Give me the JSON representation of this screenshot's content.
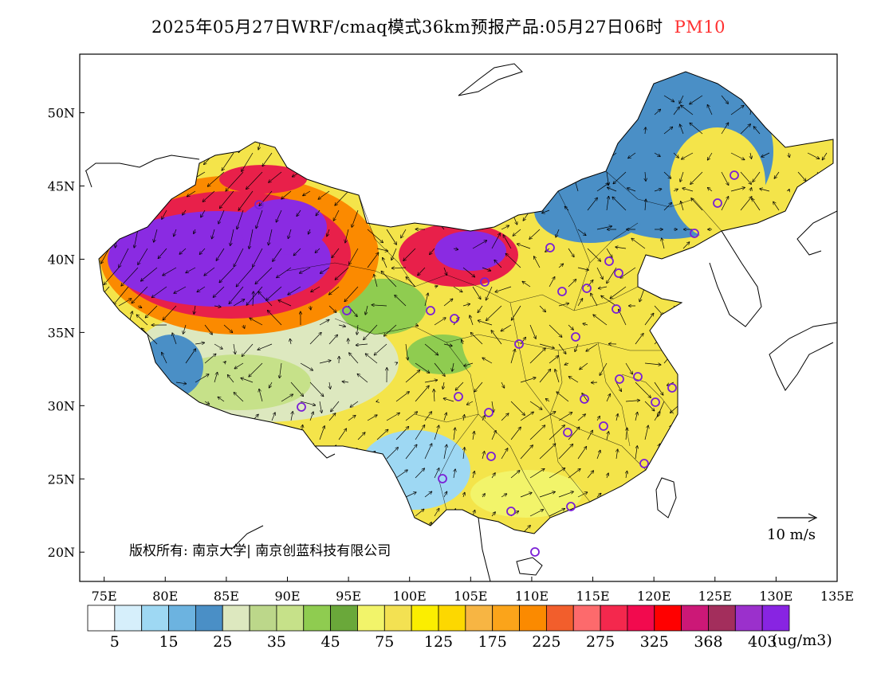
{
  "title": {
    "main": "2025年05月27日WRF/cmaq模式36km预报产品:05月27日06时",
    "pollutant": "PM10",
    "pollutant_color": "#ff3030"
  },
  "axes": {
    "lat_labels": [
      "50N",
      "45N",
      "40N",
      "35N",
      "30N",
      "25N",
      "20N"
    ],
    "lon_labels": [
      "75E",
      "80E",
      "85E",
      "90E",
      "95E",
      "100E",
      "105E",
      "110E",
      "115E",
      "120E",
      "125E",
      "130E",
      "135E"
    ],
    "lat_values": [
      50,
      45,
      40,
      35,
      30,
      25,
      20
    ],
    "lon_values": [
      75,
      80,
      85,
      90,
      95,
      100,
      105,
      110,
      115,
      120,
      125,
      130,
      135
    ],
    "lon_range": [
      73,
      135
    ],
    "lat_range": [
      18,
      54
    ]
  },
  "copyright": "版权所有: 南京大学| 南京创蓝科技有限公司",
  "wind_reference": {
    "label": "10 m/s"
  },
  "colorbar": {
    "unit": "(ug/m3)",
    "colors": [
      "#ffffff",
      "#d6effb",
      "#9ed8f3",
      "#6cb3e0",
      "#4a8fc6",
      "#dde8bf",
      "#bcd78a",
      "#c6e189",
      "#8fcc50",
      "#6aa83a",
      "#f2f46a",
      "#f3e152",
      "#fbee00",
      "#fdd800",
      "#f7b543",
      "#fba41a",
      "#fb8a00",
      "#f25e2c",
      "#fd6a6c",
      "#f4284d",
      "#f20a4e",
      "#ff0000",
      "#cc1877",
      "#a32e5c",
      "#9b30cc",
      "#8824e2"
    ],
    "tick_labels": [
      "5",
      "15",
      "25",
      "35",
      "45",
      "75",
      "125",
      "175",
      "225",
      "275",
      "325",
      "368",
      "403"
    ]
  },
  "map_colors": {
    "purple": "#8a2be2",
    "red": "#e8204a",
    "orange": "#fb8a00",
    "yellow": "#f4e44a",
    "light_yellow": "#f2f46a",
    "green": "#8fcc50",
    "light_green": "#c6e189",
    "pale_green": "#dde8bf",
    "blue": "#4a8fc6",
    "light_blue": "#9ed8f3",
    "pale_blue": "#d6effb"
  }
}
